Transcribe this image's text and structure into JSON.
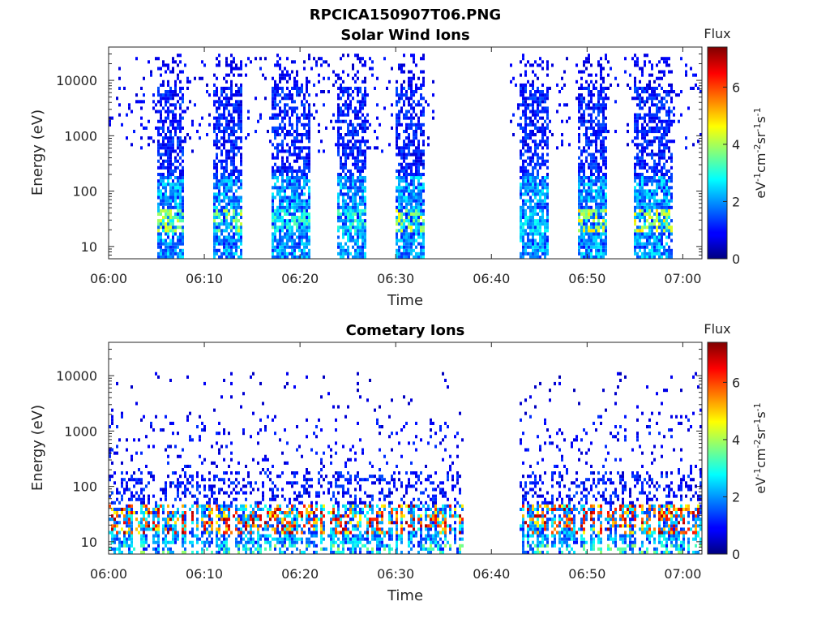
{
  "figure_title": "RPCICA150907T06.PNG",
  "colorbar": {
    "title": "Flux",
    "label_parts": [
      {
        "t": "eV",
        "sup": false
      },
      {
        "t": "-1",
        "sup": true
      },
      {
        "t": "cm",
        "sup": false
      },
      {
        "t": "-2",
        "sup": true
      },
      {
        "t": "sr",
        "sup": false
      },
      {
        "t": "-1",
        "sup": true
      },
      {
        "t": "s",
        "sup": false
      },
      {
        "t": "-1",
        "sup": true
      }
    ],
    "ticks": [
      0,
      2,
      4,
      6
    ],
    "tick_labels": [
      "0",
      "2",
      "4",
      "6"
    ],
    "range": [
      0,
      7.4
    ],
    "colormap": "jet"
  },
  "chart_data": [
    {
      "type": "heatmap",
      "title": "Solar Wind Ions",
      "xlabel": "Time",
      "ylabel": "Energy (eV)",
      "y_scale": "log",
      "ylim": [
        6,
        40000
      ],
      "x_range": [
        "06:00",
        "07:02"
      ],
      "x_ticks": [
        "06:00",
        "06:10",
        "06:20",
        "06:30",
        "06:40",
        "06:50",
        "07:00"
      ],
      "y_ticks": [
        10,
        100,
        1000,
        10000
      ],
      "y_tick_labels": [
        "10",
        "100",
        "1000",
        "10000"
      ],
      "flux_range": [
        0,
        7.4
      ],
      "scans": [
        {
          "start": "06:05",
          "end": "06:08",
          "peak": 4.5
        },
        {
          "start": "06:11",
          "end": "06:14",
          "peak": 4.5
        },
        {
          "start": "06:17",
          "end": "06:21",
          "peak": 3.5
        },
        {
          "start": "06:24",
          "end": "06:27",
          "peak": 3.5
        },
        {
          "start": "06:30",
          "end": "06:33",
          "peak": 4.8
        },
        {
          "start": "06:43",
          "end": "06:46",
          "peak": 3.0
        },
        {
          "start": "06:49",
          "end": "06:52",
          "peak": 5.0
        },
        {
          "start": "06:55",
          "end": "06:59",
          "peak": 5.0
        }
      ],
      "gaps": [
        [
          "06:34",
          "06:42"
        ]
      ]
    },
    {
      "type": "heatmap",
      "title": "Cometary Ions",
      "xlabel": "Time",
      "ylabel": "Energy (eV)",
      "y_scale": "log",
      "ylim": [
        6,
        40000
      ],
      "x_range": [
        "06:00",
        "07:02"
      ],
      "x_ticks": [
        "06:00",
        "06:10",
        "06:20",
        "06:30",
        "06:40",
        "06:50",
        "07:00"
      ],
      "y_ticks": [
        10,
        100,
        1000,
        10000
      ],
      "y_tick_labels": [
        "10",
        "100",
        "1000",
        "10000"
      ],
      "flux_range": [
        0,
        7.4
      ],
      "peak_energy_eV": [
        15,
        40
      ],
      "peak_flux": 7.0,
      "gaps": [
        [
          "06:37",
          "06:43"
        ]
      ]
    }
  ]
}
